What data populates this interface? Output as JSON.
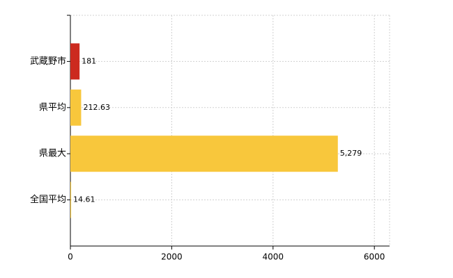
{
  "chart_data": {
    "type": "bar",
    "orientation": "horizontal",
    "categories": [
      "武蔵野市",
      "県平均",
      "県最大",
      "全国平均"
    ],
    "values": [
      181,
      212.63,
      5279,
      14.61
    ],
    "value_labels": [
      "181",
      "212.63",
      "5,279",
      "14.61"
    ],
    "colors": [
      "#cc2a1f",
      "#f8c73c",
      "#f8c73c",
      "#f8c73c"
    ],
    "xlim": [
      0,
      6300
    ],
    "xticks": [
      0,
      2000,
      4000,
      6000
    ],
    "grid": true
  }
}
